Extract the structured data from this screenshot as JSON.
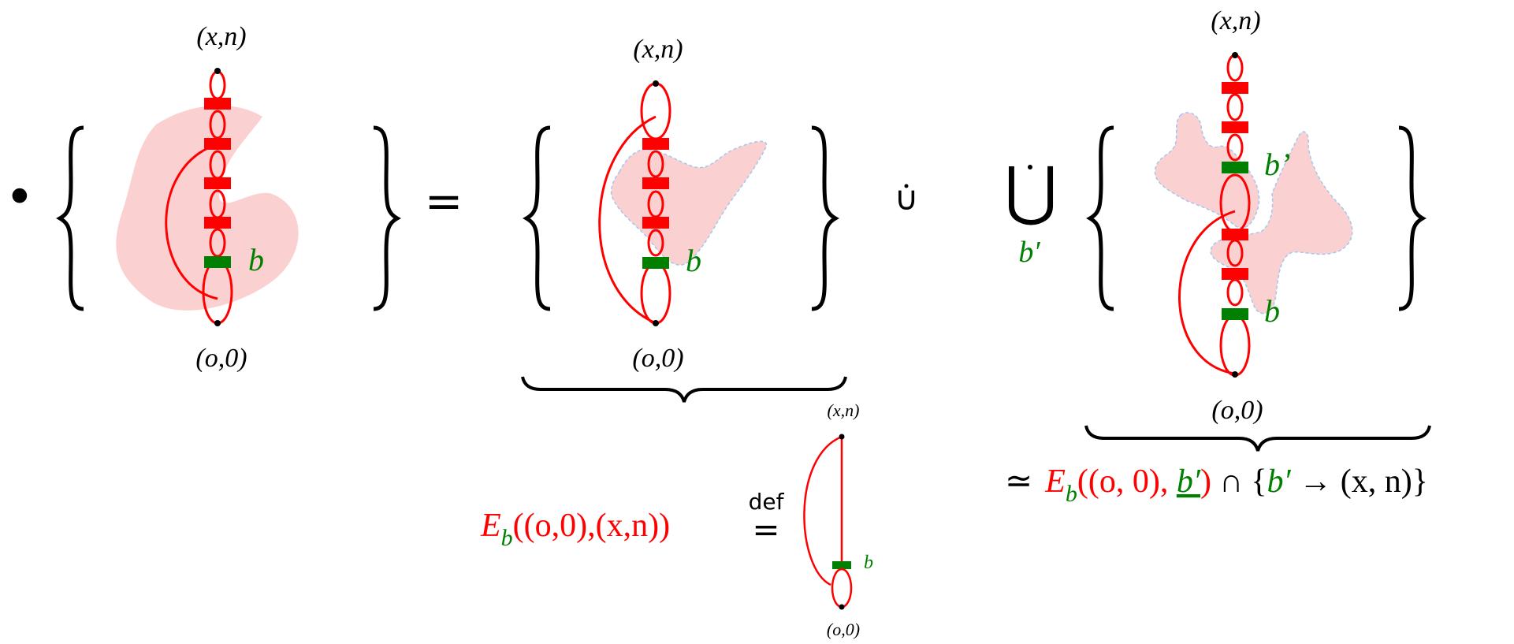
{
  "colors": {
    "red": "#ff0000",
    "green": "#008000",
    "black": "#000000",
    "blob_fill": "#fbd0d0",
    "dashed_outline": "#9ec8f2"
  },
  "left_term": {
    "bullet": "•",
    "top_label": "(x,n)",
    "bottom_label": "(o,0)",
    "edge_label": "b"
  },
  "equals": "=",
  "middle_term": {
    "top_label": "(x,n)",
    "bottom_label": "(o,0)",
    "edge_label": "b"
  },
  "definition": {
    "E": "E",
    "sub": "b",
    "args": "((o,0),(x,n))",
    "def_word": "def",
    "def_eq": "=",
    "small_top_label": "(x,n)",
    "small_bottom_label": "(o,0)",
    "small_edge_label": "b"
  },
  "disjoint_union_symbol": "∪",
  "big_union": {
    "symbol": "⋃",
    "index": "b′"
  },
  "right_term": {
    "top_label": "(x,n)",
    "bottom_label": "(o,0)",
    "upper_edge_label": "b’",
    "lower_edge_label": "b"
  },
  "iso_formula": {
    "simeq": "≃",
    "E": "E",
    "sub": "b",
    "args_open": "((o, 0), ",
    "b_under": "b′",
    "args_close": ")",
    "cap": "∩",
    "brace_open": "{",
    "b_prime": "b′",
    "arrow_part": " → (x, n)",
    "brace_close": "}"
  }
}
